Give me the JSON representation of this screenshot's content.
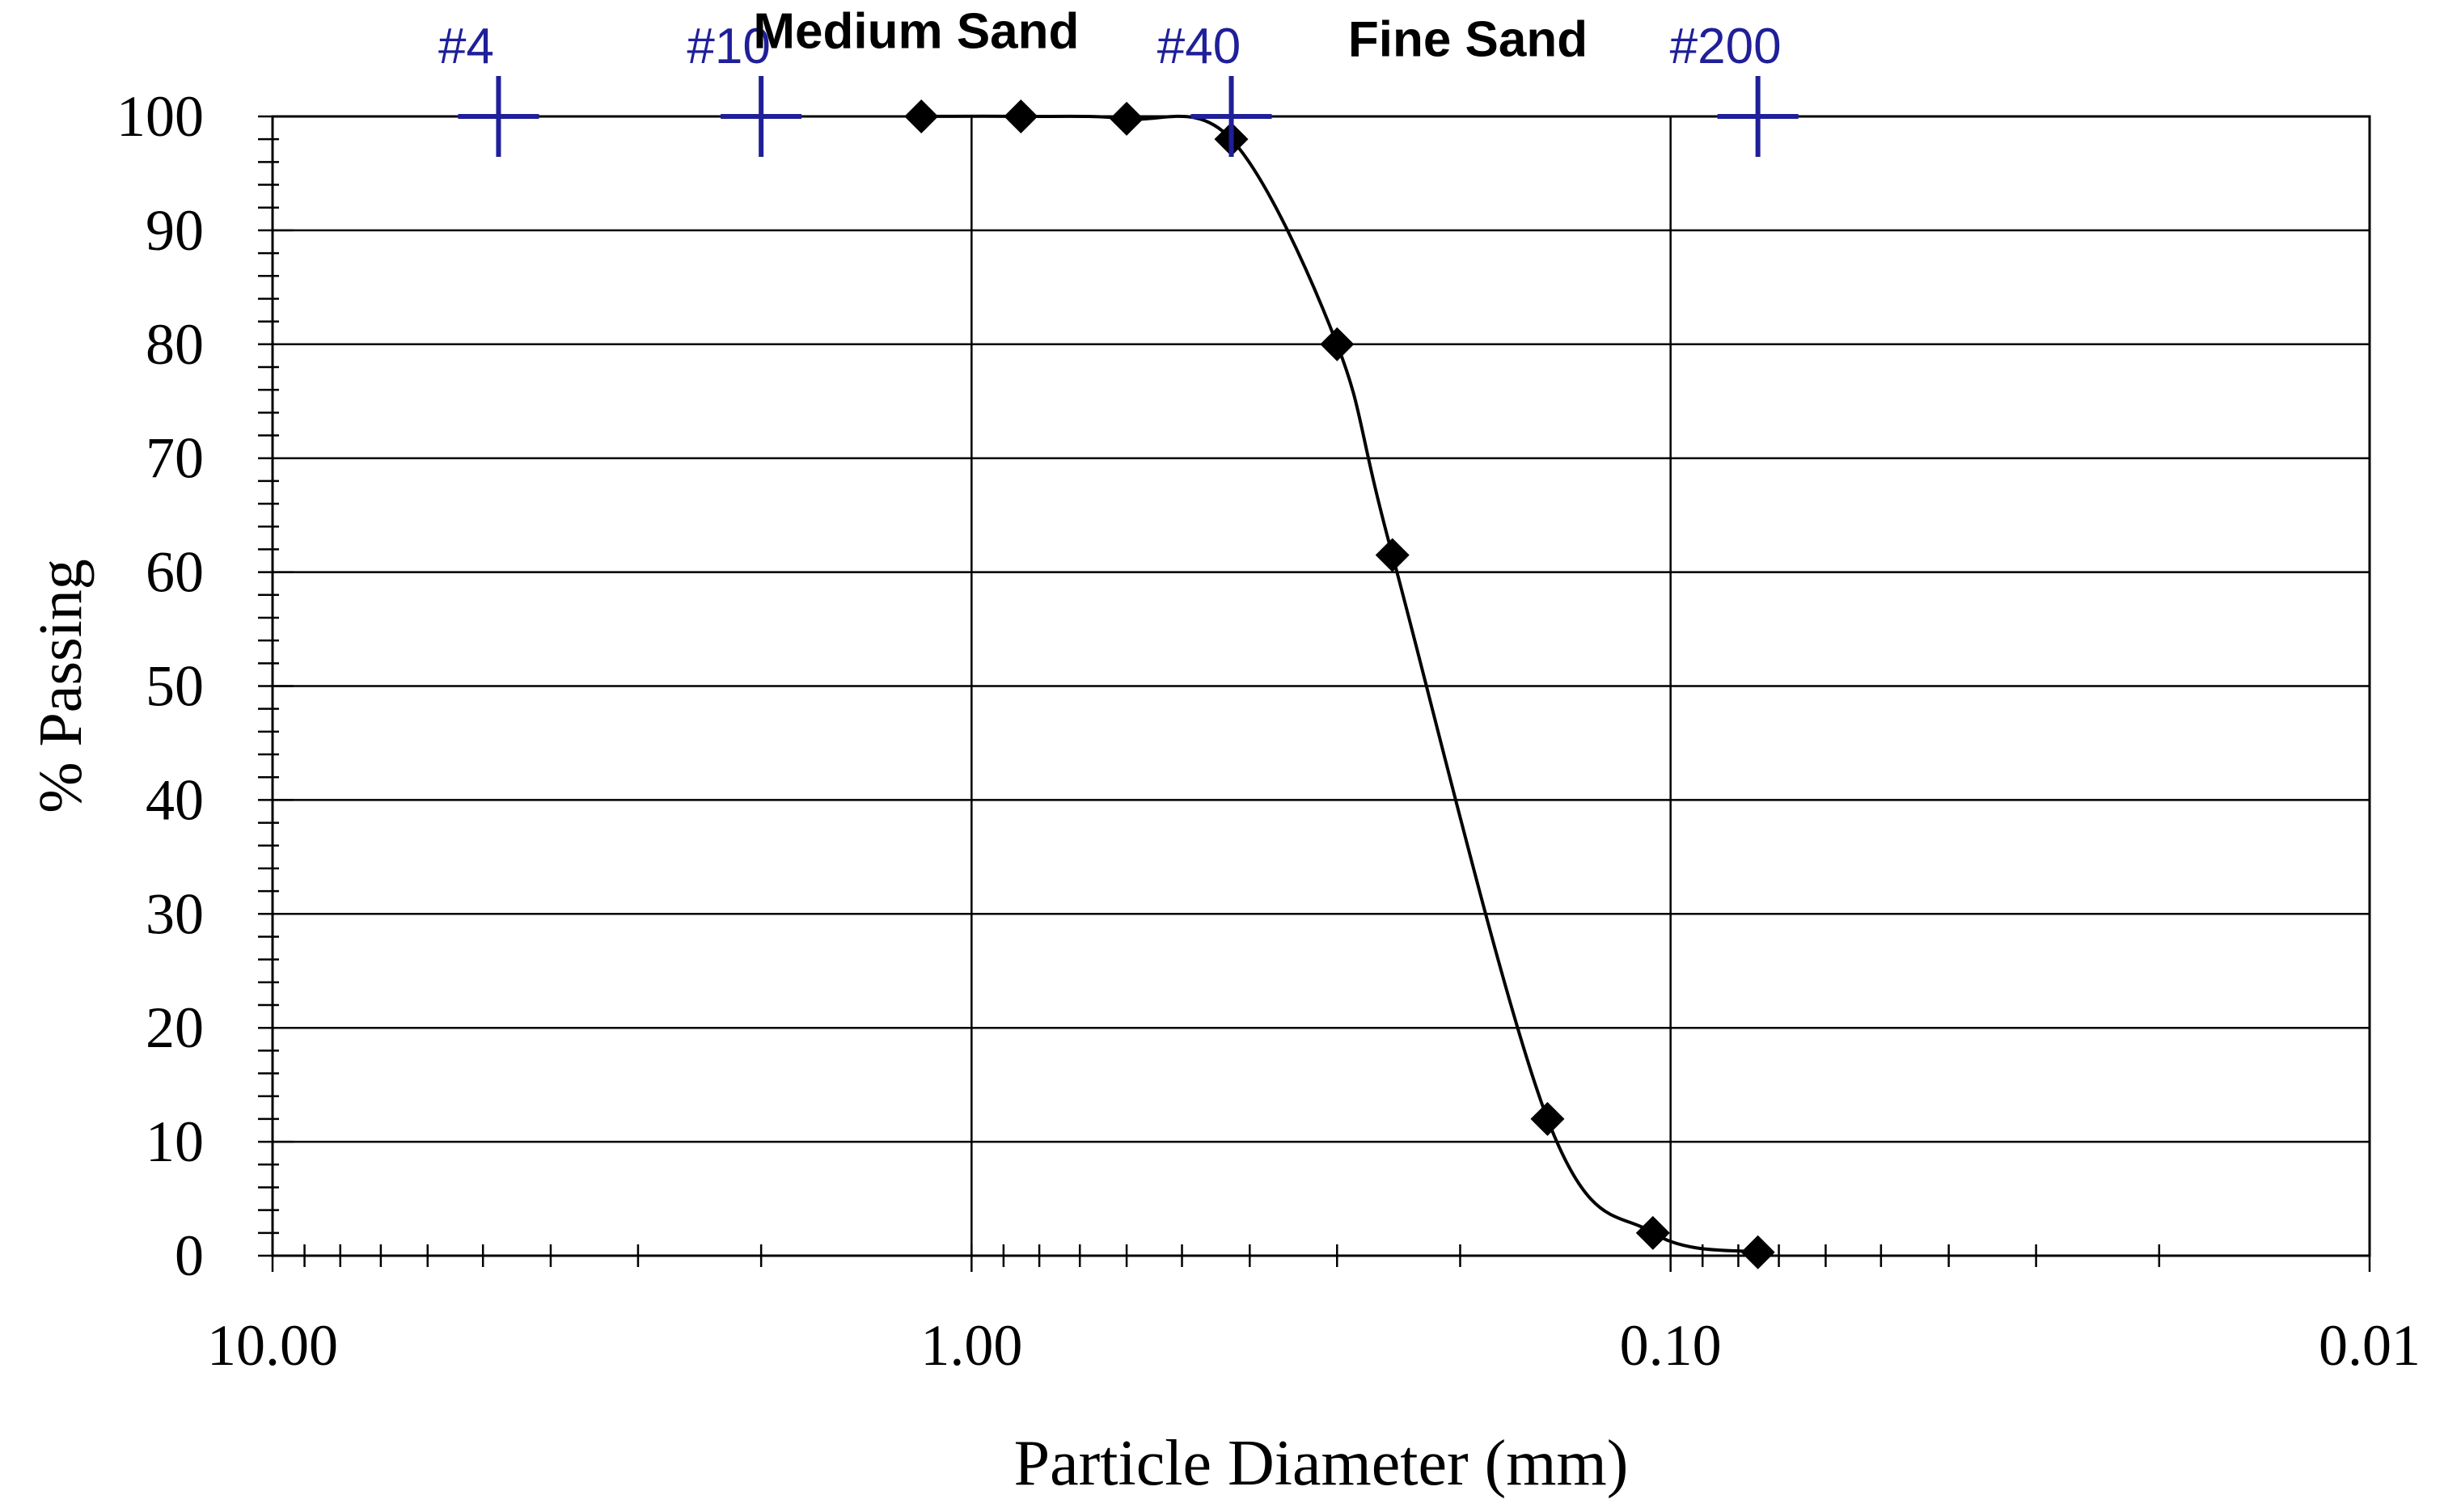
{
  "chart_data": {
    "type": "scatter",
    "xlabel": "Particle Diameter (mm)",
    "ylabel": "% Passing",
    "x_scale": "log",
    "x_reversed": true,
    "xlim": [
      10.0,
      0.01
    ],
    "ylim": [
      0,
      100
    ],
    "x_ticks": [
      10.0,
      1.0,
      0.1,
      0.01
    ],
    "x_tick_labels": [
      "10.00",
      "1.00",
      "0.10",
      "0.01"
    ],
    "y_ticks": [
      0,
      10,
      20,
      30,
      40,
      50,
      60,
      70,
      80,
      90,
      100
    ],
    "y_tick_labels": [
      "0",
      "10",
      "20",
      "30",
      "40",
      "50",
      "60",
      "70",
      "80",
      "90",
      "100"
    ],
    "grid": true,
    "series": [
      {
        "marker": "diamond",
        "line": "smooth",
        "color": "#000000",
        "x": [
          1.18,
          0.85,
          0.6,
          0.425,
          0.3,
          0.25,
          0.15,
          0.106,
          0.075
        ],
        "y": [
          100,
          100,
          99.8,
          98,
          80,
          61.5,
          12,
          2,
          0.3
        ]
      }
    ],
    "sieves": [
      {
        "label": "#4",
        "x": 4.75,
        "y": 100
      },
      {
        "label": "#10",
        "x": 2.0,
        "y": 100
      },
      {
        "label": "#40",
        "x": 0.425,
        "y": 100
      },
      {
        "label": "#200",
        "x": 0.075,
        "y": 100
      }
    ],
    "sieve_color": "#1f1f99",
    "annotations": [
      {
        "text": "Medium Sand",
        "x": 1.2,
        "y": 106
      },
      {
        "text": "Fine Sand",
        "x": 0.195,
        "y": 105.3
      }
    ]
  }
}
